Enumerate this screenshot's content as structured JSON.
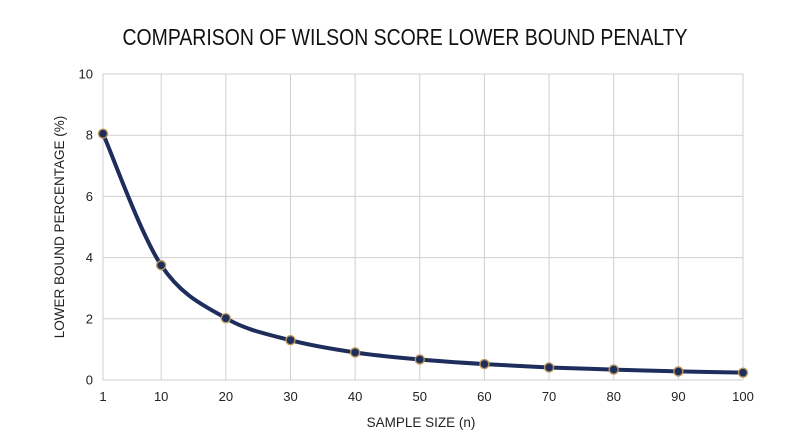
{
  "chart_data": {
    "type": "line",
    "title": "COMPARISON OF WILSON SCORE LOWER BOUND PENALTY",
    "xlabel": "SAMPLE SIZE (n)",
    "ylabel": "LOWER BOUND PERCENTAGE (%)",
    "xlim": [
      1,
      100
    ],
    "ylim": [
      0,
      10
    ],
    "x_ticks": [
      1,
      10,
      20,
      30,
      40,
      50,
      60,
      70,
      80,
      90,
      100
    ],
    "y_ticks": [
      0,
      2,
      4,
      6,
      8,
      10
    ],
    "grid": true,
    "series": [
      {
        "x": [
          1,
          10,
          20,
          30,
          40,
          50,
          60,
          70,
          80,
          90,
          100
        ],
        "values": [
          8.05,
          3.75,
          2.02,
          1.3,
          0.9,
          0.67,
          0.52,
          0.41,
          0.34,
          0.28,
          0.24
        ],
        "color": "#1f2d5c",
        "marker_color": "#1f2d5c",
        "marker_edge": "#b8975a"
      }
    ]
  }
}
